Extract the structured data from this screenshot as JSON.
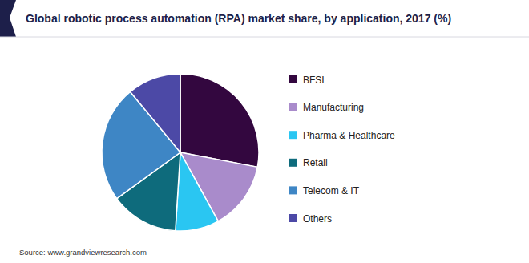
{
  "chart_data": {
    "type": "pie",
    "title": "Global robotic process automation (RPA) market share, by application, 2017 (%)",
    "categories": [
      "BFSI",
      "Manufacturing",
      "Pharma & Healthcare",
      "Retail",
      "Telecom & IT",
      "Others"
    ],
    "values": [
      28,
      14,
      9,
      14,
      24,
      11
    ],
    "colors": [
      "#33073f",
      "#a98bcb",
      "#2ac6f2",
      "#0e6b7c",
      "#3e86c5",
      "#4c49a6"
    ],
    "legend": "right",
    "source": "Source: www.grandviewresearch.com"
  }
}
